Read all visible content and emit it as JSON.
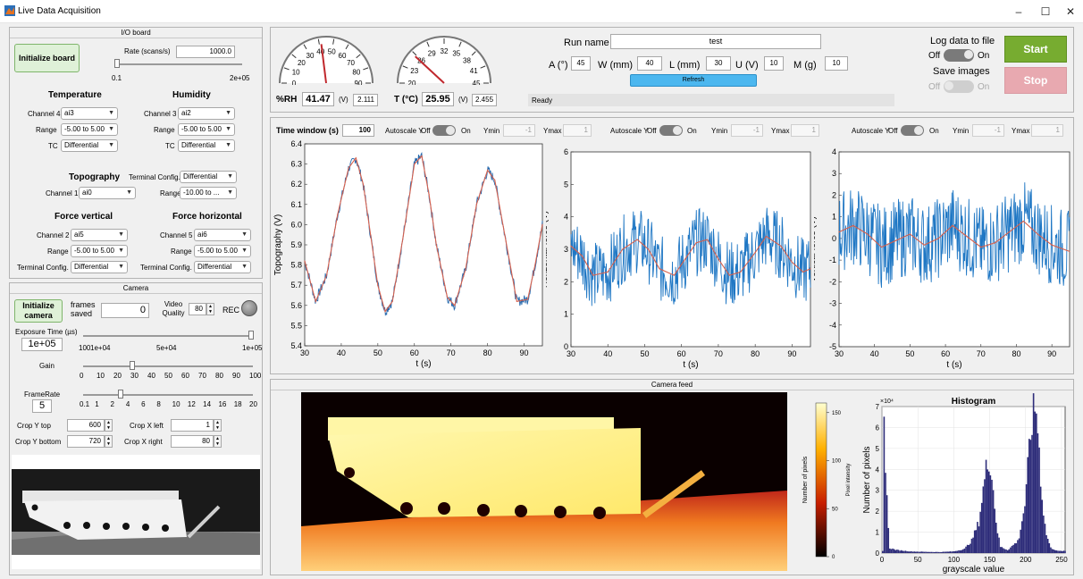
{
  "window": {
    "title": "Live Data Acquisition"
  },
  "io": {
    "title": "I/O board",
    "init_label": "Initialize board",
    "rate_label": "Rate (scans/s)",
    "rate_value": "1000.0",
    "rate_min": "0.1",
    "rate_max": "2e+05",
    "temperature": {
      "title": "Temperature",
      "channel_label": "Channel 4",
      "channel": "ai3",
      "range_label": "Range",
      "range": "-5.00 to 5.00",
      "tc_label": "TC",
      "tc": "Differential"
    },
    "humidity": {
      "title": "Humidity",
      "channel_label": "Channel 3",
      "channel": "ai2",
      "range_label": "Range",
      "range": "-5.00 to 5.00",
      "tc_label": "TC",
      "tc": "Differential"
    },
    "topography": {
      "title": "Topography",
      "channel_label": "Channel 1",
      "channel": "ai0",
      "term_label": "Terminal Config.",
      "term": "Differential",
      "range_label": "Range",
      "range": "-10.00 to ..."
    },
    "force_v": {
      "title": "Force vertical",
      "channel_label": "Channel 2",
      "channel": "ai5",
      "range_label": "Range",
      "range": "-5.00 to 5.00",
      "term_label": "Terminal Config.",
      "term": "Differential"
    },
    "force_h": {
      "title": "Force horizontal",
      "channel_label": "Channel 5",
      "channel": "ai6",
      "range_label": "Range",
      "range": "-5.00 to 5.00",
      "term_label": "Terminal Config.",
      "term": "Differential"
    }
  },
  "camera": {
    "title": "Camera",
    "init_label": "Initialize camera",
    "frames_label": "frames saved",
    "frames_value": "0",
    "quality_label": "Video Quality",
    "quality_value": "80",
    "rec_label": "REC",
    "exposure_label": "Exposure Time (µs)",
    "exposure_value": "1e+05",
    "exposure_ticks": [
      "100",
      "1e+04",
      "5e+04",
      "1e+05"
    ],
    "gain_label": "Gain",
    "gain_ticks": [
      "0",
      "10",
      "20",
      "30",
      "40",
      "50",
      "60",
      "70",
      "80",
      "90",
      "100"
    ],
    "framerate_label": "FrameRate",
    "framerate_value": "5",
    "framerate_ticks": [
      "0.1",
      "1",
      "2",
      "4",
      "6",
      "8",
      "10",
      "12",
      "14",
      "16",
      "18",
      "20"
    ],
    "crop_y_top_label": "Crop Y top",
    "crop_y_top": "600",
    "crop_y_bottom_label": "Crop Y bottom",
    "crop_y_bottom": "720",
    "crop_x_left_label": "Crop X left",
    "crop_x_left": "1",
    "crop_x_right_label": "Crop X right",
    "crop_x_right": "80"
  },
  "gauges": {
    "rh": {
      "label": "%RH",
      "value": "41.47",
      "unit": "(V)",
      "volt": "2.111",
      "ticks": [
        "0",
        "10",
        "20",
        "30",
        "40",
        "50",
        "60",
        "70",
        "80",
        "90"
      ],
      "reading": 41.47,
      "min": 0,
      "max": 90
    },
    "temp": {
      "label": "T (°C)",
      "value": "25.95",
      "unit": "(V)",
      "volt": "2.455",
      "ticks": [
        "20",
        "23",
        "26",
        "29",
        "32",
        "35",
        "38",
        "41",
        "45"
      ],
      "reading": 25.95,
      "min": 20,
      "max": 45
    }
  },
  "run": {
    "name_label": "Run name",
    "name": "test",
    "a_label": "A (°)",
    "a": "45",
    "w_label": "W (mm)",
    "w": "40",
    "l_label": "L (mm)",
    "l": "30",
    "u_label": "U (V)",
    "u": "10",
    "m_label": "M (g)",
    "m": "10",
    "refresh_label": "Refresh",
    "status": "Ready",
    "log_label": "Log data to file",
    "log_off": "Off",
    "log_on": "On",
    "save_label": "Save images",
    "save_off": "Off",
    "save_on": "On",
    "start_label": "Start",
    "stop_label": "Stop",
    "colors": {
      "start": "#77ac30",
      "stop": "#e8a9b0",
      "refresh": "#4cb7ef"
    }
  },
  "plots_header": {
    "tw_label": "Time window (s)",
    "tw_value": "100",
    "autoscale_label": "Autoscale Y",
    "off": "Off",
    "on": "On",
    "ymin_label": "Ymin",
    "ymax_label": "Ymax",
    "p1": {
      "ymin": "-1",
      "ymax": "1"
    },
    "p2": {
      "ymin": "-1",
      "ymax": "1"
    },
    "p3": {
      "ymin": "-1",
      "ymax": "1"
    }
  },
  "chart_data": [
    {
      "type": "line",
      "xlabel": "t (s)",
      "ylabel": "Topography (V)",
      "xlim": [
        30,
        95
      ],
      "ylim": [
        5.4,
        6.4
      ],
      "xticks": [
        30,
        40,
        50,
        60,
        70,
        80,
        90
      ],
      "yticks": [
        5.4,
        5.5,
        5.6,
        5.7,
        5.8,
        5.9,
        6.0,
        6.1,
        6.2,
        6.3,
        6.4
      ],
      "x": [
        30,
        33,
        36,
        39,
        42,
        44,
        46,
        48,
        50,
        52,
        54,
        57,
        60,
        62,
        64,
        66,
        69,
        71,
        74,
        77,
        80,
        82,
        85,
        88,
        91,
        93,
        95
      ],
      "y": [
        5.82,
        5.62,
        5.75,
        6.05,
        6.28,
        6.33,
        6.2,
        5.95,
        5.7,
        5.57,
        5.62,
        5.95,
        6.3,
        6.34,
        6.15,
        5.9,
        5.64,
        5.6,
        5.78,
        6.1,
        6.27,
        6.22,
        5.92,
        5.62,
        5.63,
        5.8,
        6.0
      ]
    },
    {
      "type": "line",
      "xlabel": "t (s)",
      "ylabel": "Horizontal force (V)",
      "xlim": [
        30,
        95
      ],
      "ylim": [
        0,
        6
      ],
      "xticks": [
        30,
        40,
        50,
        60,
        70,
        80,
        90
      ],
      "yticks": [
        0,
        1,
        2,
        3,
        4,
        5,
        6
      ],
      "x": [
        30,
        33,
        36,
        40,
        44,
        48,
        51,
        54,
        58,
        61,
        64,
        67,
        70,
        73,
        76,
        80,
        83,
        87,
        90,
        93,
        95
      ],
      "y": [
        3.1,
        2.8,
        2.2,
        2.3,
        3.0,
        3.3,
        3.0,
        2.4,
        2.2,
        2.7,
        3.2,
        3.3,
        2.7,
        2.2,
        2.3,
        2.9,
        3.4,
        3.1,
        2.6,
        2.3,
        2.4
      ]
    },
    {
      "type": "line",
      "xlabel": "t (s)",
      "ylabel": "Vertical force (V)",
      "xlim": [
        30,
        95
      ],
      "ylim": [
        -5,
        4
      ],
      "xticks": [
        30,
        40,
        50,
        60,
        70,
        80,
        90
      ],
      "yticks": [
        -5,
        -4,
        -3,
        -2,
        -1,
        0,
        1,
        2,
        3,
        4
      ],
      "x": [
        30,
        34,
        38,
        42,
        46,
        50,
        54,
        58,
        62,
        66,
        70,
        74,
        78,
        82,
        86,
        90,
        95
      ],
      "y": [
        0.3,
        0.6,
        0.2,
        -0.4,
        -0.1,
        0.2,
        -0.3,
        0.0,
        0.6,
        0.1,
        -0.4,
        -0.2,
        0.3,
        0.8,
        0.2,
        -0.3,
        -0.6
      ]
    },
    {
      "type": "bar",
      "title": "Histogram",
      "xlabel": "grayscale value",
      "ylabel": "Number of pixels",
      "xlim": [
        0,
        255
      ],
      "ylim": [
        0,
        70000
      ],
      "y_exponent": "×10⁴",
      "xticks": [
        0,
        50,
        100,
        150,
        200,
        250
      ],
      "yticks": [
        0,
        1,
        2,
        3,
        4,
        5,
        6,
        7
      ],
      "x": [
        2,
        10,
        20,
        40,
        60,
        80,
        100,
        115,
        125,
        135,
        140,
        145,
        150,
        155,
        160,
        165,
        175,
        190,
        200,
        205,
        210,
        215,
        218,
        222,
        228,
        235,
        245
      ],
      "y": [
        70000,
        2500,
        1500,
        800,
        600,
        500,
        800,
        2000,
        6000,
        15000,
        28000,
        40000,
        46000,
        30000,
        12000,
        3000,
        1500,
        6000,
        25000,
        50000,
        66000,
        69000,
        55000,
        30000,
        10000,
        2500,
        1000
      ]
    }
  ],
  "camfeed": {
    "title": "Camera feed",
    "colorbar_label": "Pixel intensity",
    "colorbar_ticks": [
      "0",
      "50",
      "100",
      "150"
    ],
    "colorbar_side_label": "Number of pixels"
  }
}
